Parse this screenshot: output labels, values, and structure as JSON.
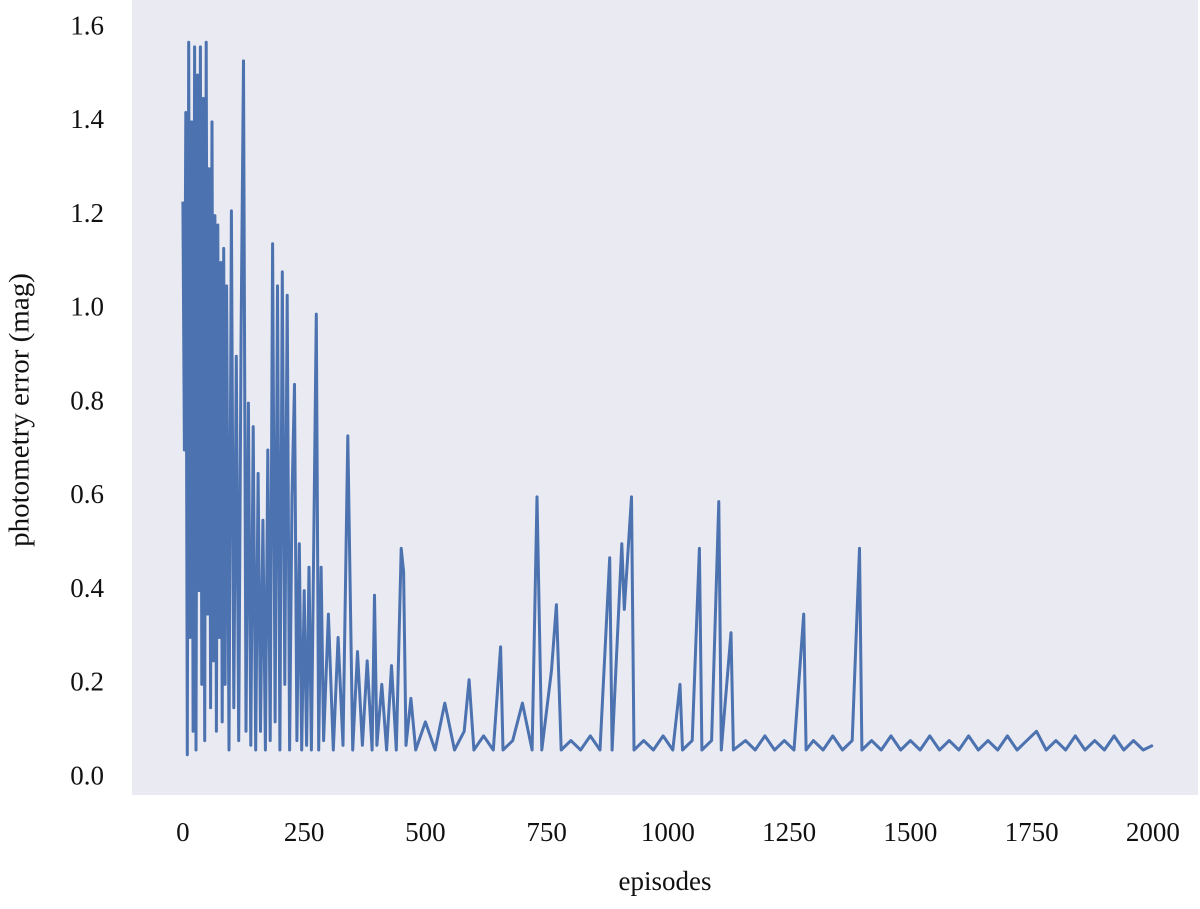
{
  "chart_data": {
    "type": "line",
    "xlabel": "episodes",
    "ylabel": "photometry error (mag)",
    "xlim": [
      -105,
      2093
    ],
    "ylim": [
      -0.036,
      1.66
    ],
    "xticks": [
      0,
      250,
      500,
      750,
      1000,
      1250,
      1500,
      1750,
      2000
    ],
    "yticks": [
      {
        "value": 0,
        "label": "0.0"
      },
      0.2,
      0.4,
      0.6,
      0.8,
      {
        "value": 1,
        "label": "1.0"
      },
      1.2,
      1.4,
      1.6
    ],
    "grid": false,
    "background": "#eaeaf2",
    "series": [
      {
        "color": "#4c72b0",
        "x": [
          0,
          3,
          6,
          9,
          12,
          15,
          18,
          21,
          24,
          27,
          30,
          33,
          36,
          39,
          42,
          45,
          48,
          51,
          54,
          57,
          60,
          63,
          66,
          69,
          72,
          75,
          78,
          81,
          84,
          87,
          90,
          95,
          100,
          105,
          110,
          115,
          120,
          125,
          130,
          135,
          140,
          145,
          150,
          155,
          160,
          165,
          170,
          175,
          180,
          185,
          190,
          195,
          200,
          205,
          210,
          215,
          220,
          225,
          230,
          235,
          240,
          245,
          250,
          255,
          260,
          265,
          270,
          275,
          280,
          285,
          290,
          300,
          310,
          320,
          330,
          340,
          350,
          360,
          370,
          380,
          390,
          395,
          400,
          410,
          420,
          430,
          440,
          450,
          455,
          460,
          470,
          480,
          500,
          520,
          540,
          560,
          580,
          590,
          600,
          620,
          640,
          655,
          660,
          680,
          700,
          720,
          730,
          740,
          760,
          770,
          780,
          800,
          820,
          840,
          860,
          880,
          885,
          905,
          910,
          925,
          930,
          950,
          970,
          990,
          1010,
          1025,
          1030,
          1050,
          1065,
          1070,
          1090,
          1105,
          1110,
          1130,
          1135,
          1160,
          1180,
          1200,
          1220,
          1240,
          1260,
          1280,
          1285,
          1300,
          1320,
          1340,
          1360,
          1380,
          1395,
          1400,
          1420,
          1440,
          1460,
          1480,
          1500,
          1520,
          1540,
          1560,
          1580,
          1600,
          1620,
          1640,
          1660,
          1680,
          1700,
          1720,
          1740,
          1760,
          1780,
          1800,
          1820,
          1840,
          1860,
          1880,
          1900,
          1920,
          1940,
          1960,
          1980,
          2000
        ],
        "values": [
          1.23,
          0.7,
          1.42,
          0.05,
          1.57,
          0.3,
          1.4,
          0.1,
          1.56,
          0.06,
          1.5,
          0.4,
          1.56,
          0.2,
          1.45,
          0.08,
          1.57,
          0.35,
          1.3,
          0.15,
          1.4,
          0.25,
          1.2,
          0.1,
          1.18,
          0.3,
          1.1,
          0.12,
          1.13,
          0.2,
          1.05,
          0.06,
          1.21,
          0.15,
          0.9,
          0.08,
          0.95,
          1.53,
          0.1,
          0.8,
          0.07,
          0.75,
          0.06,
          0.65,
          0.1,
          0.55,
          0.06,
          0.7,
          0.08,
          1.14,
          0.12,
          1.05,
          0.06,
          1.08,
          0.2,
          1.03,
          0.06,
          0.6,
          0.84,
          0.08,
          0.5,
          0.06,
          0.4,
          0.07,
          0.45,
          0.06,
          0.53,
          0.99,
          0.06,
          0.45,
          0.08,
          0.35,
          0.06,
          0.3,
          0.07,
          0.73,
          0.06,
          0.27,
          0.07,
          0.25,
          0.06,
          0.39,
          0.07,
          0.2,
          0.06,
          0.24,
          0.06,
          0.49,
          0.44,
          0.07,
          0.17,
          0.06,
          0.12,
          0.06,
          0.16,
          0.06,
          0.1,
          0.21,
          0.06,
          0.09,
          0.06,
          0.28,
          0.06,
          0.08,
          0.16,
          0.06,
          0.6,
          0.06,
          0.23,
          0.37,
          0.06,
          0.08,
          0.06,
          0.09,
          0.06,
          0.47,
          0.06,
          0.5,
          0.36,
          0.6,
          0.06,
          0.08,
          0.06,
          0.09,
          0.06,
          0.2,
          0.06,
          0.08,
          0.49,
          0.06,
          0.08,
          0.59,
          0.06,
          0.31,
          0.06,
          0.08,
          0.06,
          0.09,
          0.06,
          0.08,
          0.06,
          0.35,
          0.06,
          0.08,
          0.06,
          0.09,
          0.06,
          0.08,
          0.49,
          0.06,
          0.08,
          0.06,
          0.09,
          0.06,
          0.08,
          0.06,
          0.09,
          0.06,
          0.08,
          0.06,
          0.09,
          0.06,
          0.08,
          0.06,
          0.09,
          0.06,
          0.08,
          0.1,
          0.06,
          0.08,
          0.06,
          0.09,
          0.06,
          0.08,
          0.06,
          0.09,
          0.06,
          0.08,
          0.06,
          0.07
        ]
      }
    ]
  }
}
